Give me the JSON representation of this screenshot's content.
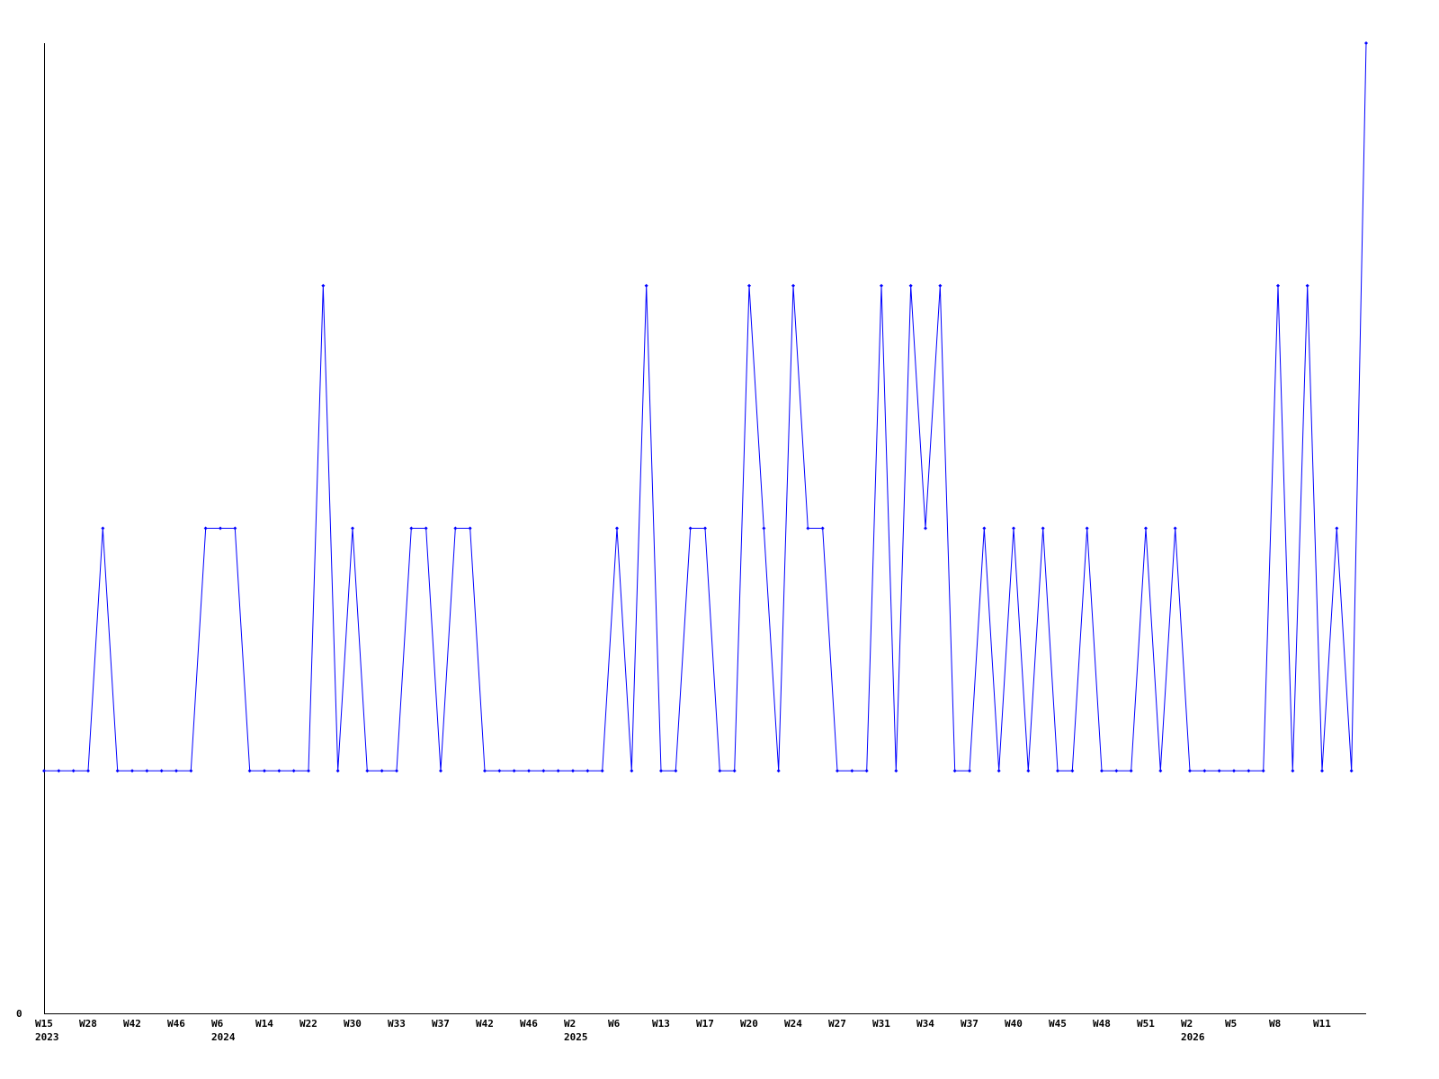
{
  "chart_data": {
    "type": "line",
    "title": "",
    "xlabel": "",
    "ylabel": "",
    "ylim": [
      0,
      4
    ],
    "y_tick_labels": [
      "0"
    ],
    "grid": false,
    "legend": "none",
    "line_color": "#0000ff",
    "axis_color": "#000000",
    "values": [
      1,
      1,
      1,
      1,
      2,
      1,
      1,
      1,
      1,
      1,
      1,
      2,
      2,
      2,
      1,
      1,
      1,
      1,
      1,
      3,
      1,
      2,
      1,
      1,
      1,
      2,
      2,
      1,
      2,
      2,
      1,
      1,
      1,
      1,
      1,
      1,
      1,
      1,
      1,
      2,
      1,
      3,
      1,
      1,
      2,
      2,
      1,
      1,
      3,
      2,
      1,
      3,
      2,
      2,
      1,
      1,
      1,
      3,
      1,
      3,
      2,
      3,
      1,
      1,
      2,
      1,
      2,
      1,
      2,
      1,
      1,
      2,
      1,
      1,
      1,
      2,
      1,
      2,
      1,
      1,
      1,
      1,
      1,
      1,
      3,
      1,
      3,
      1,
      2,
      1,
      4
    ],
    "x_ticks": [
      {
        "index": 0,
        "label": "W15",
        "year": "2023"
      },
      {
        "index": 3,
        "label": "W28"
      },
      {
        "index": 6,
        "label": "W42"
      },
      {
        "index": 9,
        "label": "W46"
      },
      {
        "index": 12,
        "label": "W6",
        "year": "2024"
      },
      {
        "index": 15,
        "label": "W14"
      },
      {
        "index": 18,
        "label": "W22"
      },
      {
        "index": 21,
        "label": "W30"
      },
      {
        "index": 24,
        "label": "W33"
      },
      {
        "index": 27,
        "label": "W37"
      },
      {
        "index": 30,
        "label": "W42"
      },
      {
        "index": 33,
        "label": "W46"
      },
      {
        "index": 36,
        "label": "W2",
        "year": "2025"
      },
      {
        "index": 39,
        "label": "W6"
      },
      {
        "index": 42,
        "label": "W13"
      },
      {
        "index": 45,
        "label": "W17"
      },
      {
        "index": 48,
        "label": "W20"
      },
      {
        "index": 51,
        "label": "W24"
      },
      {
        "index": 54,
        "label": "W27"
      },
      {
        "index": 57,
        "label": "W31"
      },
      {
        "index": 60,
        "label": "W34"
      },
      {
        "index": 63,
        "label": "W37"
      },
      {
        "index": 66,
        "label": "W40"
      },
      {
        "index": 69,
        "label": "W45"
      },
      {
        "index": 72,
        "label": "W48"
      },
      {
        "index": 75,
        "label": "W51"
      },
      {
        "index": 78,
        "label": "W2",
        "year": "2026"
      },
      {
        "index": 81,
        "label": "W5"
      },
      {
        "index": 84,
        "label": "W8"
      },
      {
        "index": 87,
        "label": "W11"
      }
    ]
  }
}
